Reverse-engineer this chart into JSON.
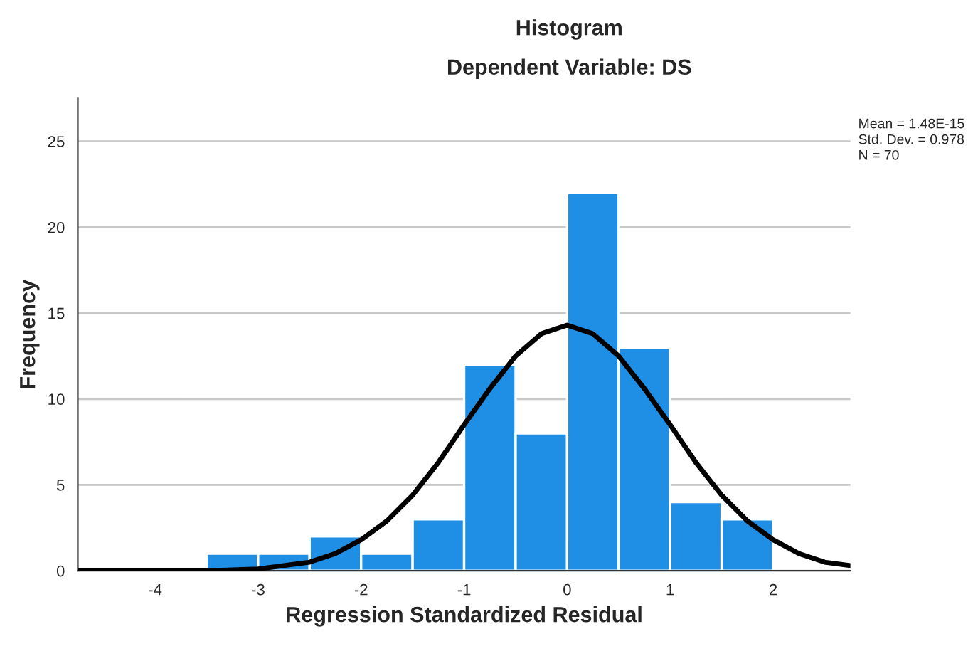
{
  "chart_data": {
    "type": "histogram",
    "title": "Histogram",
    "subtitle": "Dependent Variable: DS",
    "xlabel": "Regression Standardized Residual",
    "ylabel": "Frequency",
    "bins": [
      -3.5,
      -3.0,
      -2.5,
      -2.0,
      -1.5,
      -1.0,
      -0.5,
      0.0,
      0.5,
      1.0,
      1.5,
      2.0
    ],
    "values": [
      1,
      1,
      2,
      1,
      3,
      12,
      8,
      22,
      13,
      4,
      3
    ],
    "color": "#1f8fe6",
    "series": [
      {
        "type": "line",
        "color": "#000000",
        "x": [
          -4.75,
          -4.0,
          -3.5,
          -3.0,
          -2.75,
          -2.5,
          -2.25,
          -2.0,
          -1.75,
          -1.5,
          -1.25,
          -1.0,
          -0.75,
          -0.5,
          -0.25,
          0.0,
          0.25,
          0.5,
          0.75,
          1.0,
          1.25,
          1.5,
          1.75,
          2.0,
          2.25,
          2.5,
          2.75
        ],
        "values": [
          0.0,
          0.0,
          0.0,
          0.1,
          0.3,
          0.5,
          1.0,
          1.8,
          2.9,
          4.4,
          6.3,
          8.5,
          10.6,
          12.5,
          13.8,
          14.3,
          13.8,
          12.5,
          10.6,
          8.5,
          6.3,
          4.4,
          2.9,
          1.8,
          1.0,
          0.5,
          0.3
        ]
      }
    ],
    "xlim": [
      -4.75,
      2.75
    ],
    "xticks": [
      -4,
      -3,
      -2,
      -1,
      0,
      1,
      2
    ],
    "ylim": [
      0,
      27.5
    ],
    "yticks": [
      0,
      5,
      10,
      15,
      20,
      25
    ],
    "grid": "y",
    "annotations": [
      "Mean = 1.48E-15",
      "Std. Dev. = 0.978",
      "N = 70"
    ]
  }
}
